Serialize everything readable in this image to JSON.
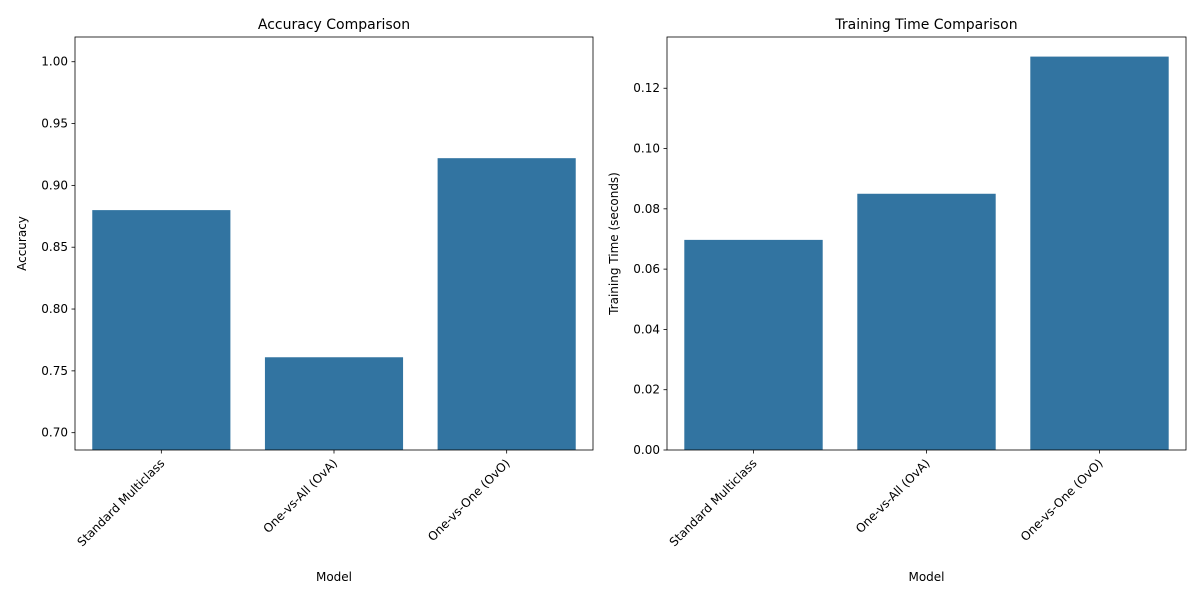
{
  "chart_data": [
    {
      "type": "bar",
      "title": "Accuracy Comparison",
      "xlabel": "Model",
      "ylabel": "Accuracy",
      "categories": [
        "Standard Multiclass",
        "One-vs-All (OvA)",
        "One-vs-One (OvO)"
      ],
      "values": [
        0.88,
        0.761,
        0.922
      ],
      "ylim": [
        0.686,
        1.02
      ],
      "yticks": [
        0.7,
        0.75,
        0.8,
        0.85,
        0.9,
        0.95,
        1.0
      ],
      "ytick_labels": [
        "0.70",
        "0.75",
        "0.80",
        "0.85",
        "0.90",
        "0.95",
        "1.00"
      ],
      "bar_color": "#3274a1",
      "grid": false,
      "legend": "none"
    },
    {
      "type": "bar",
      "title": "Training Time Comparison",
      "xlabel": "Model",
      "ylabel": "Training Time (seconds)",
      "categories": [
        "Standard Multiclass",
        "One-vs-All (OvA)",
        "One-vs-One (OvO)"
      ],
      "values": [
        0.0697,
        0.085,
        0.1305
      ],
      "ylim": [
        0,
        0.137
      ],
      "yticks": [
        0.0,
        0.02,
        0.04,
        0.06,
        0.08,
        0.1,
        0.12
      ],
      "ytick_labels": [
        "0.00",
        "0.02",
        "0.04",
        "0.06",
        "0.08",
        "0.10",
        "0.12"
      ],
      "bar_color": "#3274a1",
      "grid": false,
      "legend": "none"
    }
  ]
}
